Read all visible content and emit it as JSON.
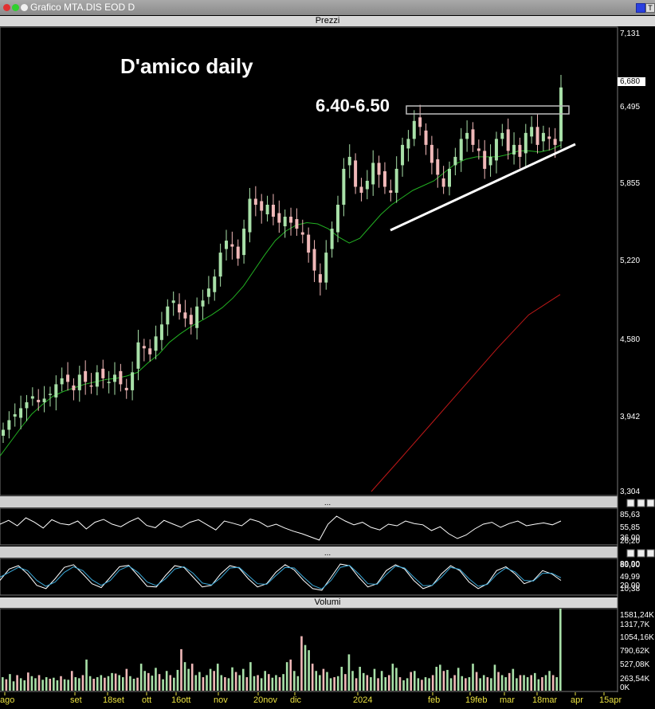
{
  "window": {
    "title": "Grafico MTA.DIS EOD D",
    "controls": [
      "T"
    ]
  },
  "panes": {
    "price": "Prezzi",
    "volume": "Volumi"
  },
  "annotations": {
    "chart_title": "D'amico daily",
    "resistance_label": "6.40-6.50"
  },
  "colors": {
    "background": "#000000",
    "up_candle": "#a8e0a8",
    "down_candle": "#f0b8b8",
    "ma_short": "#22b022",
    "ma_long": "#c01818",
    "oscillator1": "#ffffff",
    "oscillator2_a": "#ffffff",
    "oscillator2_b": "#3aa8d8"
  },
  "chart_data": [
    {
      "type": "candlestick",
      "title": "D'amico daily",
      "x_tick_labels": [
        "ago",
        "set",
        "18set",
        "ott",
        "16ott",
        "nov",
        "20nov",
        "dic",
        "2024",
        "feb",
        "19feb",
        "mar",
        "18mar",
        "apr",
        "15apr"
      ],
      "y_tick_labels": [
        "7,131",
        "6,680",
        "6,495",
        "5,855",
        "5,220",
        "4,580",
        "3,942",
        "3,304"
      ],
      "ylim": [
        3.304,
        7.131
      ],
      "series": [
        {
          "name": "close",
          "values": [
            3.82,
            3.9,
            3.95,
            4.0,
            4.05,
            4.1,
            4.05,
            4.08,
            4.12,
            4.2,
            4.25,
            4.22,
            4.15,
            4.28,
            4.22,
            4.18,
            4.3,
            4.25,
            4.22,
            4.28,
            4.2,
            4.15,
            4.3,
            4.55,
            4.5,
            4.45,
            4.6,
            4.7,
            4.85,
            4.9,
            4.8,
            4.75,
            4.7,
            4.85,
            4.9,
            5.0,
            5.1,
            5.3,
            5.4,
            5.35,
            5.25,
            5.5,
            5.75,
            5.7,
            5.65,
            5.7,
            5.6,
            5.55,
            5.6,
            5.55,
            5.5,
            5.45,
            5.3,
            5.15,
            5.05,
            5.3,
            5.5,
            5.7,
            6.0,
            6.1,
            5.85,
            5.8,
            5.9,
            6.05,
            5.95,
            5.85,
            5.8,
            6.0,
            6.2,
            6.25,
            6.4,
            6.35,
            6.2,
            6.05,
            5.95,
            5.85,
            6.0,
            6.1,
            6.25,
            6.3,
            6.2,
            6.15,
            6.0,
            6.1,
            6.25,
            6.3,
            6.15,
            6.2,
            6.1,
            6.3,
            6.35,
            6.2,
            6.3,
            6.25,
            6.2,
            6.68
          ]
        },
        {
          "name": "ma_short",
          "values": [
            3.6,
            3.72,
            3.84,
            3.95,
            4.03,
            4.1,
            4.14,
            4.17,
            4.2,
            4.22,
            4.24,
            4.25,
            4.27,
            4.3,
            4.38,
            4.45,
            4.55,
            4.62,
            4.68,
            4.73,
            4.78,
            4.84,
            4.92,
            5.02,
            5.15,
            5.28,
            5.4,
            5.48,
            5.53,
            5.55,
            5.54,
            5.5,
            5.43,
            5.38,
            5.42,
            5.52,
            5.62,
            5.7,
            5.76,
            5.82,
            5.86,
            5.9,
            5.97,
            6.04,
            6.08,
            6.1,
            6.1,
            6.1,
            6.12,
            6.15,
            6.15,
            6.14,
            6.16,
            6.2
          ]
        },
        {
          "name": "ma_long",
          "values": [
            3.304,
            3.6,
            3.9,
            4.2,
            4.5,
            4.78,
            4.95
          ]
        }
      ]
    },
    {
      "type": "line",
      "y_tick_labels": [
        "85,63",
        "55,85",
        "36,00",
        "26,20"
      ],
      "series": [
        {
          "values": [
            60,
            72,
            55,
            80,
            66,
            48,
            74,
            62,
            58,
            70,
            45,
            66,
            75,
            60,
            52,
            68,
            80,
            56,
            49,
            72,
            61,
            50,
            66,
            74,
            58,
            42,
            70,
            63,
            55,
            76,
            68,
            52,
            60,
            48,
            38,
            30,
            20,
            10,
            60,
            85,
            70,
            58,
            66,
            50,
            42,
            60,
            55,
            70,
            62,
            58,
            40,
            52,
            30,
            15,
            26,
            45,
            60,
            66,
            50,
            62,
            70,
            55,
            60,
            64,
            58,
            70
          ]
        }
      ]
    },
    {
      "type": "line",
      "y_tick_labels": [
        "89,90",
        "80,00",
        "49,99",
        "20,00",
        "10,38"
      ],
      "series": [
        {
          "values": [
            40,
            75,
            85,
            60,
            25,
            15,
            45,
            80,
            88,
            60,
            30,
            18,
            50,
            82,
            86,
            55,
            22,
            20,
            55,
            85,
            80,
            50,
            20,
            25,
            60,
            85,
            78,
            45,
            20,
            30,
            65,
            88,
            72,
            40,
            15,
            10,
            50,
            90,
            85,
            50,
            20,
            30,
            70,
            88,
            75,
            40,
            15,
            25,
            60,
            85,
            70,
            35,
            15,
            30,
            70,
            82,
            60,
            30,
            40,
            70,
            60,
            40
          ]
        },
        {
          "values": [
            50,
            65,
            80,
            70,
            40,
            22,
            35,
            65,
            82,
            70,
            42,
            25,
            40,
            72,
            84,
            65,
            35,
            24,
            45,
            75,
            82,
            62,
            32,
            26,
            48,
            78,
            80,
            55,
            30,
            28,
            55,
            80,
            78,
            50,
            25,
            14,
            40,
            80,
            86,
            60,
            30,
            28,
            58,
            84,
            78,
            50,
            24,
            25,
            50,
            80,
            74,
            45,
            22,
            28,
            58,
            78,
            66,
            40,
            38,
            62,
            62,
            48
          ]
        }
      ]
    },
    {
      "type": "bar",
      "title": "Volumi",
      "y_tick_labels": [
        "1581,24K",
        "1317,7K",
        "1054,16K",
        "790,62K",
        "527,08K",
        "263,54K",
        "0K"
      ],
      "ylim": [
        0,
        1581.24
      ],
      "values": [
        260,
        220,
        320,
        180,
        300,
        240,
        200,
        350,
        280,
        240,
        300,
        210,
        260,
        230,
        250,
        200,
        280,
        220,
        210,
        380,
        260,
        240,
        300,
        600,
        280,
        230,
        260,
        300,
        250,
        280,
        340,
        330,
        300,
        260,
        420,
        280,
        230,
        250,
        520,
        380,
        340,
        290,
        440,
        320,
        220,
        380,
        300,
        250,
        400,
        800,
        550,
        420,
        520,
        300,
        360,
        260,
        300,
        420,
        380,
        520,
        300,
        260,
        240,
        450,
        360,
        300,
        420,
        260,
        550,
        280,
        300,
        240,
        380,
        320,
        250,
        300,
        260,
        320,
        550,
        600,
        380,
        280,
        1050,
        880,
        780,
        520,
        380,
        300,
        420,
        360,
        240,
        260,
        280,
        460,
        320,
        700,
        380,
        240,
        460,
        340,
        300,
        260,
        420,
        240,
        380,
        260,
        300,
        520,
        440,
        260,
        200,
        240,
        360,
        380,
        240,
        210,
        260,
        240,
        300,
        460,
        500,
        380,
        400,
        240,
        300,
        440,
        280,
        240,
        260,
        520,
        360,
        240,
        300,
        260,
        240,
        500,
        360,
        300,
        260,
        340,
        420,
        240,
        300,
        300,
        260,
        300,
        340,
        220,
        260,
        300,
        380,
        300,
        260,
        1581.24
      ]
    }
  ]
}
